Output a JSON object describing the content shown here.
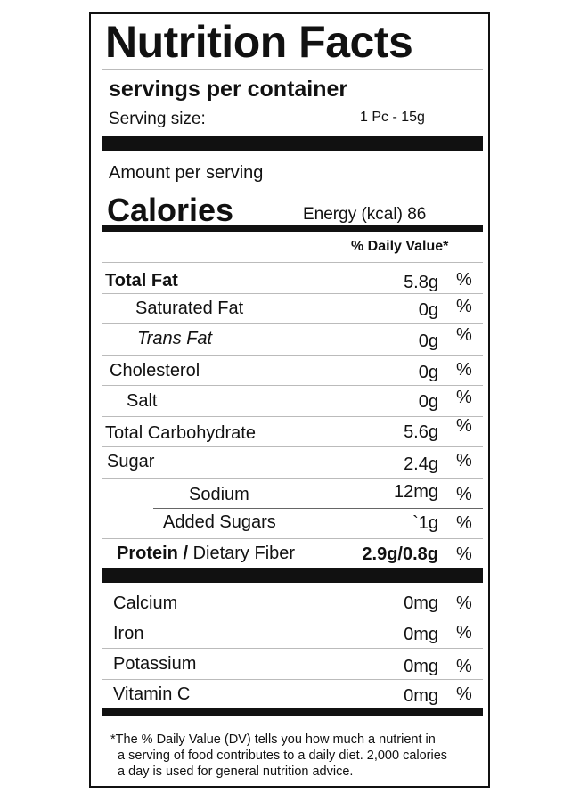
{
  "title": "Nutrition Facts",
  "servings_per_container": "servings per container",
  "serving_size_label": "Serving size:",
  "serving_size_value": "1 Pc - 15g",
  "amount_per_serving": "Amount per serving",
  "calories_label": "Calories",
  "energy": "Energy (kcal) 86",
  "daily_value_header": "% Daily Value*",
  "nutrients": [
    {
      "label": "Total Fat",
      "amount": "5.8g",
      "pct": "%"
    },
    {
      "label": "Saturated Fat",
      "amount": "0g",
      "pct": "%"
    },
    {
      "label": "Trans Fat",
      "amount": "0g",
      "pct": "%"
    },
    {
      "label": "Cholesterol",
      "amount": "0g",
      "pct": "%"
    },
    {
      "label": "Salt",
      "amount": "0g",
      "pct": "%"
    },
    {
      "label": "Total Carbohydrate",
      "amount": "5.6g",
      "pct": "%"
    },
    {
      "label": "Sugar",
      "amount": "2.4g",
      "pct": "%"
    },
    {
      "label": "Sodium",
      "amount": "12mg",
      "pct": "%"
    },
    {
      "label": "Added Sugars",
      "amount": "`1g",
      "pct": "%"
    },
    {
      "label_bold": "Protein /",
      "label": "Dietary Fiber",
      "amount": "2.9g/0.8g",
      "pct": "%"
    }
  ],
  "minerals": [
    {
      "label": "Calcium",
      "amount": "0mg",
      "pct": "%"
    },
    {
      "label": "Iron",
      "amount": "0mg",
      "pct": "%"
    },
    {
      "label": "Potassium",
      "amount": "0mg",
      "pct": "%"
    },
    {
      "label": "Vitamin C",
      "amount": "0mg",
      "pct": "%"
    }
  ],
  "footnote": "*The % Daily Value (DV) tells you how much a nutrient in\n  a serving of food contributes to a daily diet. 2,000 calories\n  a day is used for general nutrition advice."
}
